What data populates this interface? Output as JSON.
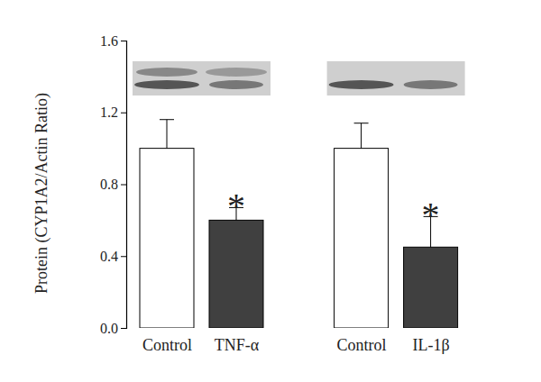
{
  "chart_data": {
    "type": "bar",
    "y_label": "Protein (CYP1A2/Actin Ratio)",
    "categories": [
      "Control",
      "TNF-α",
      "Control",
      "IL-1β"
    ],
    "values": [
      1.0,
      0.6,
      1.0,
      0.45
    ],
    "errors": [
      0.16,
      0.07,
      0.14,
      0.17
    ],
    "colors": [
      "#ffffff",
      "#404040",
      "#ffffff",
      "#404040"
    ],
    "ylim": [
      0,
      1.6
    ],
    "yticks": [
      {
        "value": 0,
        "label": "0.0"
      },
      0.4,
      0.8,
      1.2,
      1.6
    ],
    "annotations": [
      {
        "text": "*",
        "category": "TNF-α"
      },
      {
        "text": "*",
        "category": "IL-1β"
      }
    ]
  }
}
